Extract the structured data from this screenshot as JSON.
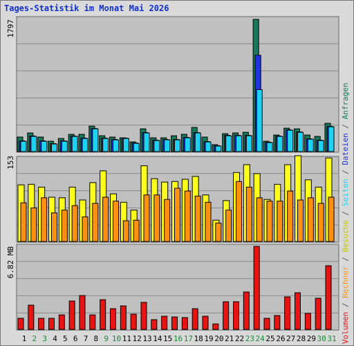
{
  "chart_data": [
    {
      "type": "bar",
      "title": "Tages-Statistik im Monat Mai 2026",
      "ylim": [
        0,
        1797
      ],
      "yticks": [
        1797
      ],
      "series": [
        {
          "name": "Anfragen",
          "color": "#17795b",
          "values": [
            197,
            253,
            197,
            140,
            178,
            234,
            234,
            346,
            215,
            197,
            187,
            131,
            309,
            187,
            187,
            215,
            234,
            328,
            197,
            94,
            243,
            253,
            262,
            1797,
            140,
            225,
            318,
            309,
            225,
            206,
            384
          ]
        },
        {
          "name": "Dateien",
          "color": "#2034e0",
          "values": [
            145,
            211,
            145,
            108,
            145,
            211,
            183,
            314,
            183,
            164,
            183,
            117,
            258,
            155,
            164,
            164,
            192,
            258,
            136,
            80,
            220,
            220,
            220,
            1310,
            127,
            211,
            295,
            267,
            173,
            155,
            342
          ]
        },
        {
          "name": "Seiten",
          "color": "#1ed2f2",
          "values": [
            140,
            206,
            140,
            103,
            140,
            206,
            178,
            309,
            178,
            159,
            178,
            112,
            253,
            150,
            159,
            159,
            187,
            253,
            131,
            75,
            215,
            215,
            215,
            842,
            122,
            206,
            290,
            262,
            168,
            150,
            337
          ]
        }
      ]
    },
    {
      "type": "bar",
      "ylim": [
        0,
        153
      ],
      "yticks": [
        153
      ],
      "series": [
        {
          "name": "Besuche",
          "color": "#ffff1e",
          "values": [
            101,
            102,
            97,
            79,
            78,
            97,
            74,
            105,
            126,
            85,
            70,
            56,
            135,
            112,
            106,
            107,
            111,
            116,
            83,
            38,
            73,
            123,
            137,
            121,
            75,
            102,
            137,
            153,
            110,
            97,
            149
          ]
        },
        {
          "name": "Rechner",
          "color": "#ff9010",
          "values": [
            69,
            60,
            78,
            51,
            56,
            64,
            44,
            68,
            79,
            72,
            37,
            38,
            83,
            83,
            75,
            95,
            90,
            81,
            70,
            33,
            56,
            107,
            97,
            78,
            72,
            72,
            90,
            74,
            78,
            68,
            79
          ]
        }
      ]
    },
    {
      "type": "bar",
      "ylim": [
        0,
        6.82
      ],
      "yticks": [
        {
          "value": 6.82,
          "label": "6.82 MB"
        }
      ],
      "categories": [
        "1",
        "2",
        "3",
        "4",
        "5",
        "6",
        "7",
        "8",
        "9",
        "10",
        "11",
        "12",
        "13",
        "14",
        "15",
        "16",
        "17",
        "18",
        "19",
        "20",
        "21",
        "22",
        "23",
        "24",
        "25",
        "26",
        "27",
        "28",
        "29",
        "30",
        "31"
      ],
      "label_colors": [
        "#000",
        "#1a8a3a",
        "#1a8a3a",
        "#000",
        "#000",
        "#000",
        "#000",
        "#000",
        "#1a8a3a",
        "#1a8a3a",
        "#000",
        "#000",
        "#000",
        "#000",
        "#000",
        "#1a8a3a",
        "#1a8a3a",
        "#000",
        "#000",
        "#000",
        "#000",
        "#000",
        "#1a8a3a",
        "#1a8a3a",
        "#000",
        "#000",
        "#000",
        "#000",
        "#000",
        "#1a8a3a",
        "#1a8a3a"
      ],
      "series": [
        {
          "name": "Volumen",
          "color": "#e81414",
          "values": [
            0.91,
            1.99,
            0.91,
            0.91,
            1.19,
            2.33,
            2.78,
            1.19,
            2.44,
            1.7,
            1.93,
            1.25,
            2.22,
            0.8,
            1.08,
            1.02,
            0.97,
            1.7,
            1.08,
            0.45,
            2.27,
            2.27,
            3.07,
            6.82,
            0.91,
            1.14,
            2.67,
            3.01,
            1.31,
            2.56,
            5.23
          ]
        }
      ]
    }
  ],
  "legend_separator": " / "
}
